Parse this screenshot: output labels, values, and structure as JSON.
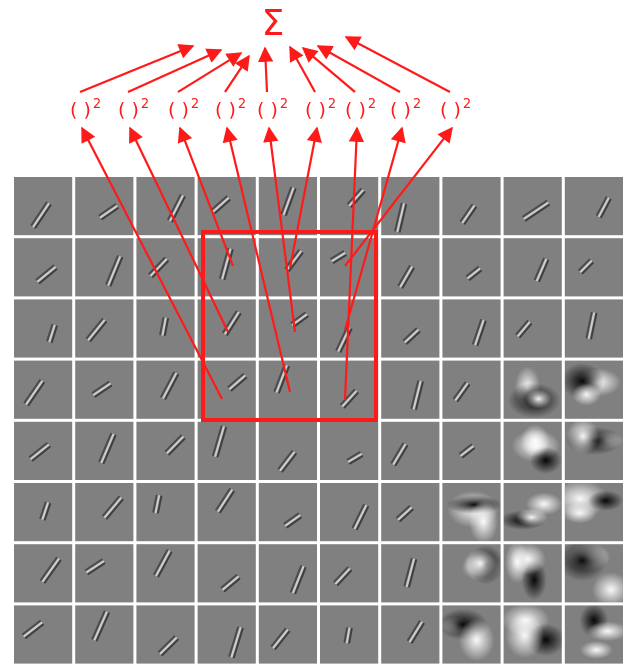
{
  "sum_symbol": "Σ",
  "square_label": "( )",
  "square_exponent": "2",
  "square_units": [
    "( )2",
    "( )2",
    "( )2",
    "( )2",
    "( )2",
    "( )2",
    "( )2",
    "( )2",
    "( )2"
  ],
  "grid": {
    "rows": 8,
    "cols": 10,
    "highlight_rows": [
      1,
      3
    ],
    "highlight_cols": [
      3,
      5
    ]
  },
  "colors": {
    "annotation": "#ff1a1a",
    "background": "#ffffff",
    "patch": "#808080"
  }
}
